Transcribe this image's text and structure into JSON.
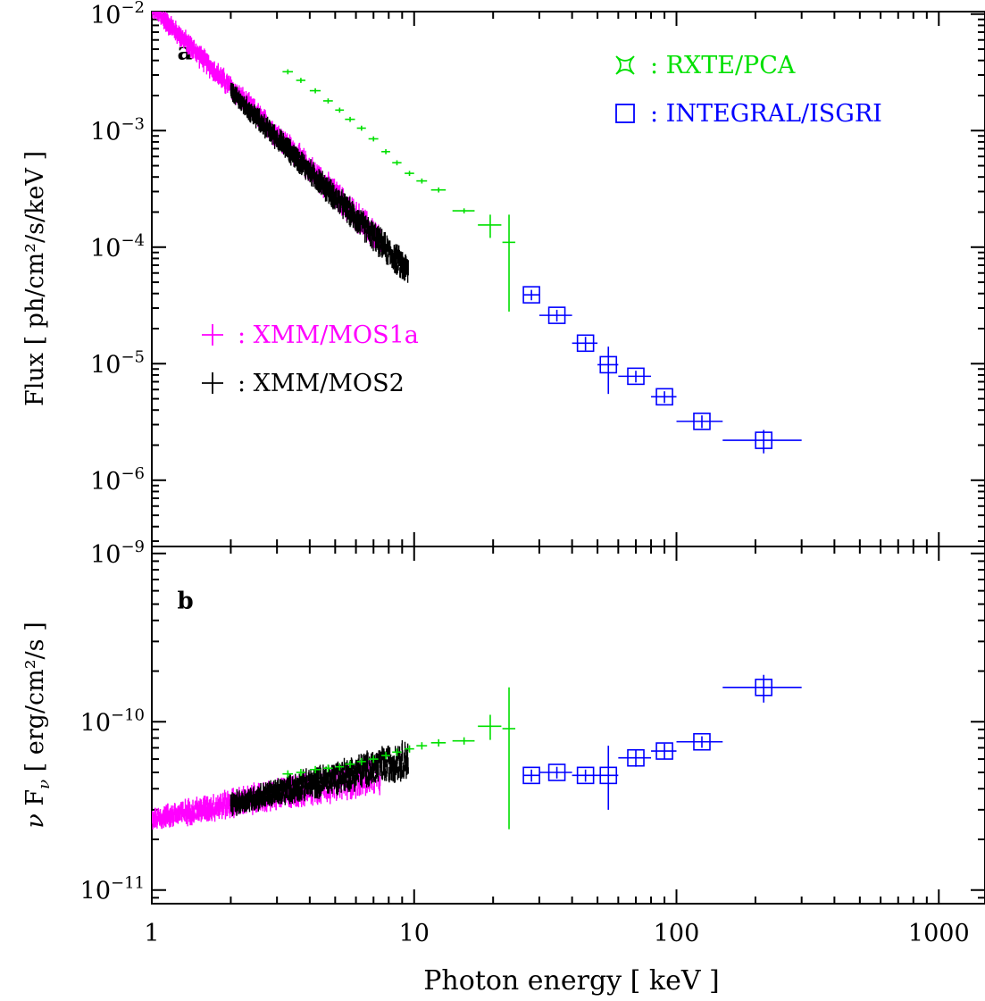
{
  "x_axis_label": "Photon energy [ keV ]",
  "chart_data": [
    {
      "type": "scatter",
      "panel": "a",
      "x_scale": "log",
      "y_scale": "log",
      "xlim": [
        1,
        1500
      ],
      "ylim": [
        2.7e-07,
        0.0105
      ],
      "xlabel": "Photon energy [ keV ]",
      "ylabel": "Flux [ ph/cm²/s/keV ]",
      "legend_placement": "top-right and middle-left",
      "x_ticks": [
        {
          "v": 1,
          "label": "1"
        },
        {
          "v": 10,
          "label": "10"
        },
        {
          "v": 100,
          "label": "100"
        },
        {
          "v": 1000,
          "label": "1000"
        }
      ],
      "y_ticks": [
        {
          "v": 0.01,
          "base": "10",
          "exp": "−2"
        },
        {
          "v": 0.001,
          "base": "10",
          "exp": "−3"
        },
        {
          "v": 0.0001,
          "base": "10",
          "exp": "−4"
        },
        {
          "v": 1e-05,
          "base": "10",
          "exp": "−5"
        },
        {
          "v": 1e-06,
          "base": "10",
          "exp": "−6"
        }
      ],
      "series": [
        {
          "name": "XMM/MOS1a",
          "color": "#ff00ff",
          "marker": "cross",
          "x_range": [
            1,
            7.5
          ],
          "y_model": "power-law",
          "y_at_1keV": 0.0115,
          "photon_index": 2.3
        },
        {
          "name": "XMM/MOS2",
          "color": "#000000",
          "marker": "cross",
          "x_range": [
            2,
            9.5
          ],
          "y_model": "power-law",
          "y_at_1keV": 0.0105,
          "photon_index": 2.28
        },
        {
          "name": "RXTE/PCA",
          "color": "#00e000",
          "marker": "cross",
          "points": [
            {
              "x": 3.3,
              "y": 0.0032,
              "xerr": 0.15
            },
            {
              "x": 3.7,
              "y": 0.0027,
              "xerr": 0.15
            },
            {
              "x": 4.2,
              "y": 0.0022,
              "xerr": 0.2
            },
            {
              "x": 4.7,
              "y": 0.0018,
              "xerr": 0.2
            },
            {
              "x": 5.2,
              "y": 0.0015,
              "xerr": 0.2
            },
            {
              "x": 5.7,
              "y": 0.00125,
              "xerr": 0.25
            },
            {
              "x": 6.3,
              "y": 0.00105,
              "xerr": 0.25
            },
            {
              "x": 7.0,
              "y": 0.00085,
              "xerr": 0.3
            },
            {
              "x": 7.8,
              "y": 0.00066,
              "xerr": 0.3
            },
            {
              "x": 8.6,
              "y": 0.00053,
              "xerr": 0.35
            },
            {
              "x": 9.6,
              "y": 0.00043,
              "xerr": 0.4
            },
            {
              "x": 10.7,
              "y": 0.00037,
              "xerr": 0.5
            },
            {
              "x": 12.4,
              "y": 0.00031,
              "xerr": 0.8
            },
            {
              "x": 15.5,
              "y": 0.000205,
              "xerr": 1.5
            },
            {
              "x": 19.5,
              "y": 0.000155,
              "xerr": 2.0,
              "ylo": 0.00012,
              "yhi": 0.00019
            },
            {
              "x": 23.0,
              "y": 0.00011,
              "xerr": 1.3,
              "ylo": 2.8e-05,
              "yhi": 0.00019
            }
          ]
        },
        {
          "name": "INTEGRAL/ISGRI",
          "color": "#0000ff",
          "marker": "square",
          "points": [
            {
              "x": 28,
              "y": 3.9e-05,
              "xlo": 26,
              "xhi": 30,
              "ylo": 3.5e-05,
              "yhi": 4.3e-05
            },
            {
              "x": 35,
              "y": 2.6e-05,
              "xlo": 30,
              "xhi": 40,
              "ylo": 2.3e-05,
              "yhi": 2.9e-05
            },
            {
              "x": 45,
              "y": 1.5e-05,
              "xlo": 40,
              "xhi": 50,
              "ylo": 1.3e-05,
              "yhi": 1.7e-05
            },
            {
              "x": 55,
              "y": 9.8e-06,
              "xlo": 50,
              "xhi": 60,
              "ylo": 5.5e-06,
              "yhi": 1.4e-05
            },
            {
              "x": 70,
              "y": 7.8e-06,
              "xlo": 60,
              "xhi": 80,
              "ylo": 6.9e-06,
              "yhi": 8.7e-06
            },
            {
              "x": 90,
              "y": 5.2e-06,
              "xlo": 80,
              "xhi": 100,
              "ylo": 4.6e-06,
              "yhi": 5.8e-06
            },
            {
              "x": 125,
              "y": 3.2e-06,
              "xlo": 100,
              "xhi": 150,
              "ylo": 2.8e-06,
              "yhi": 3.6e-06
            },
            {
              "x": 215,
              "y": 2.2e-06,
              "xlo": 150,
              "xhi": 300,
              "ylo": 1.7e-06,
              "yhi": 2.7e-06
            }
          ]
        }
      ],
      "annotations": [
        {
          "text": "a",
          "x": 1.25,
          "y": 0.0047
        }
      ]
    },
    {
      "type": "scatter",
      "panel": "b",
      "x_scale": "log",
      "y_scale": "log",
      "xlim": [
        1,
        1500
      ],
      "ylim": [
        8.3e-12,
        1.1e-09
      ],
      "xlabel": "Photon energy [ keV ]",
      "ylabel": "ν F_ν [ erg/cm²/s ]",
      "ylabel_parts": {
        "nu": "ν",
        "F": "F",
        "sub": "ν",
        "rest": "[ erg/cm²/s ]"
      },
      "x_ticks": [
        {
          "v": 1,
          "label": "1"
        },
        {
          "v": 10,
          "label": "10"
        },
        {
          "v": 100,
          "label": "100"
        },
        {
          "v": 1000,
          "label": "1000"
        }
      ],
      "y_ticks": [
        {
          "v": 1e-09,
          "base": "10",
          "exp": "−9"
        },
        {
          "v": 1e-10,
          "base": "10",
          "exp": "−10"
        },
        {
          "v": 1e-11,
          "base": "10",
          "exp": "−11"
        }
      ],
      "series": [
        {
          "name": "XMM/MOS1a",
          "color": "#ff00ff",
          "marker": "cross",
          "x_range": [
            1,
            7.5
          ],
          "y_model": "power-law",
          "y_at_1keV": 2.65e-11,
          "index": 0.3
        },
        {
          "name": "XMM/MOS2",
          "color": "#000000",
          "marker": "cross",
          "x_range": [
            2,
            9.5
          ],
          "y_model": "power-law",
          "y_at_1keV": 2.45e-11,
          "index": 0.4
        },
        {
          "name": "RXTE/PCA",
          "color": "#00e000",
          "marker": "cross",
          "points": [
            {
              "x": 3.3,
              "y": 4.9e-11,
              "xerr": 0.15
            },
            {
              "x": 3.7,
              "y": 5e-11,
              "xerr": 0.15
            },
            {
              "x": 4.2,
              "y": 5.2e-11,
              "xerr": 0.2
            },
            {
              "x": 4.7,
              "y": 5.3e-11,
              "xerr": 0.2
            },
            {
              "x": 5.2,
              "y": 5.4e-11,
              "xerr": 0.2
            },
            {
              "x": 5.7,
              "y": 5.6e-11,
              "xerr": 0.25
            },
            {
              "x": 6.3,
              "y": 5.8e-11,
              "xerr": 0.25
            },
            {
              "x": 7.0,
              "y": 6e-11,
              "xerr": 0.3
            },
            {
              "x": 7.8,
              "y": 6.3e-11,
              "xerr": 0.3
            },
            {
              "x": 8.6,
              "y": 6.6e-11,
              "xerr": 0.35
            },
            {
              "x": 9.6,
              "y": 6.9e-11,
              "xerr": 0.4
            },
            {
              "x": 10.7,
              "y": 7.2e-11,
              "xerr": 0.5
            },
            {
              "x": 12.4,
              "y": 7.5e-11,
              "xerr": 0.8
            },
            {
              "x": 15.5,
              "y": 7.7e-11,
              "xerr": 1.5
            },
            {
              "x": 19.5,
              "y": 9.4e-11,
              "xerr": 2.0,
              "ylo": 7.8e-11,
              "yhi": 1.1e-10
            },
            {
              "x": 23.0,
              "y": 9.1e-11,
              "xerr": 1.3,
              "ylo": 2.3e-11,
              "yhi": 1.6e-10
            }
          ]
        },
        {
          "name": "INTEGRAL/ISGRI",
          "color": "#0000ff",
          "marker": "square",
          "points": [
            {
              "x": 28,
              "y": 4.8e-11,
              "xlo": 26,
              "xhi": 30,
              "ylo": 4.4e-11,
              "yhi": 5.2e-11
            },
            {
              "x": 35,
              "y": 5e-11,
              "xlo": 30,
              "xhi": 40,
              "ylo": 4.6e-11,
              "yhi": 5.4e-11
            },
            {
              "x": 45,
              "y": 4.8e-11,
              "xlo": 40,
              "xhi": 50,
              "ylo": 4.4e-11,
              "yhi": 5.2e-11
            },
            {
              "x": 55,
              "y": 4.8e-11,
              "xlo": 50,
              "xhi": 60,
              "ylo": 3e-11,
              "yhi": 7.2e-11
            },
            {
              "x": 70,
              "y": 6.1e-11,
              "xlo": 60,
              "xhi": 80,
              "ylo": 5.4e-11,
              "yhi": 6.8e-11
            },
            {
              "x": 90,
              "y": 6.7e-11,
              "xlo": 80,
              "xhi": 100,
              "ylo": 6e-11,
              "yhi": 7.4e-11
            },
            {
              "x": 125,
              "y": 7.6e-11,
              "xlo": 100,
              "xhi": 150,
              "ylo": 7e-11,
              "yhi": 8.2e-11
            },
            {
              "x": 215,
              "y": 1.6e-10,
              "xlo": 150,
              "xhi": 300,
              "ylo": 1.3e-10,
              "yhi": 1.9e-10
            }
          ]
        }
      ],
      "annotations": [
        {
          "text": "b",
          "x": 1.25,
          "y": 5.2e-10
        }
      ]
    }
  ],
  "legend": [
    {
      "name": "RXTE/PCA",
      "separator": ":",
      "color": "#00e000",
      "symbol": "star4",
      "group": "top-right"
    },
    {
      "name": "INTEGRAL/ISGRI",
      "separator": ":",
      "color": "#0000ff",
      "symbol": "square",
      "group": "top-right"
    },
    {
      "name": "XMM/MOS1a",
      "separator": ":",
      "color": "#ff00ff",
      "symbol": "cross",
      "group": "middle-left"
    },
    {
      "name": "XMM/MOS2",
      "separator": ":",
      "color": "#000000",
      "symbol": "cross",
      "group": "middle-left"
    }
  ]
}
